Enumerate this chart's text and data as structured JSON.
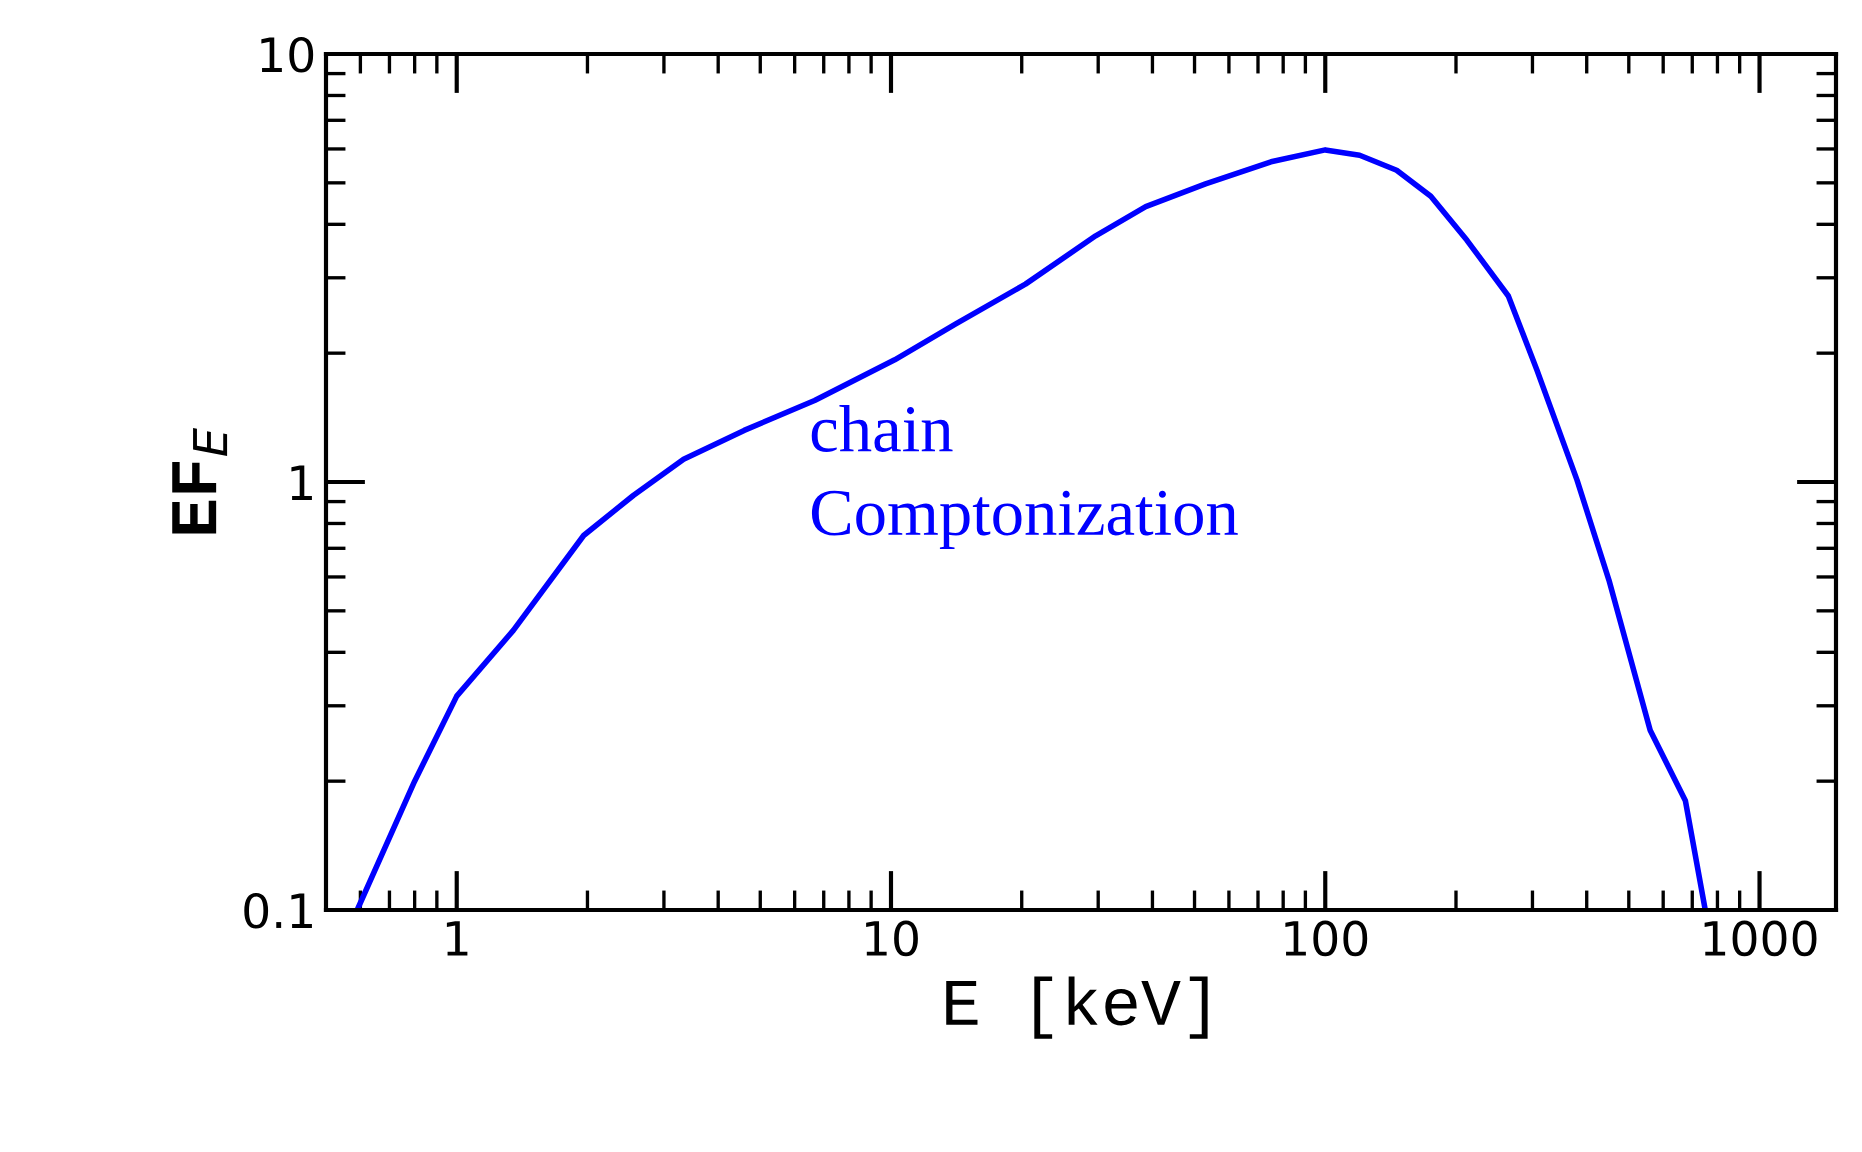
{
  "chart_data": {
    "type": "line",
    "xlabel": "E [keV]",
    "ylabel": "EF$_{E}$",
    "log": "xy",
    "xlim": [
      0.5,
      1500
    ],
    "ylim": [
      0.1,
      10
    ],
    "xticks": [
      1,
      10,
      100,
      1000
    ],
    "yticks": [
      0.1,
      1,
      10
    ],
    "annotations": [
      "chain\nComptonization"
    ],
    "series": [
      {
        "color": "#0000ff",
        "x": [
          0.59,
          0.8,
          1.0,
          1.35,
          1.96,
          2.55,
          3.33,
          4.59,
          6.67,
          10.2,
          14.1,
          20.4,
          29.6,
          38.6,
          53,
          75,
          100,
          120,
          146,
          175,
          212,
          264,
          307,
          380,
          450,
          560,
          675,
          750
        ],
        "values": [
          0.1,
          0.2,
          0.316,
          0.45,
          0.75,
          0.93,
          1.13,
          1.32,
          1.55,
          1.93,
          2.34,
          2.9,
          3.76,
          4.4,
          4.97,
          5.6,
          5.97,
          5.8,
          5.35,
          4.65,
          3.67,
          2.72,
          1.83,
          1.01,
          0.59,
          0.263,
          0.18,
          0.1
        ]
      }
    ]
  }
}
